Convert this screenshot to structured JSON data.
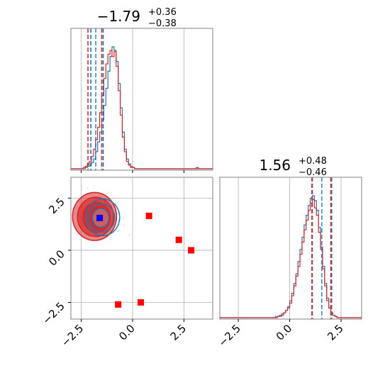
{
  "chart_data": {
    "type": "corner",
    "parameters": [
      {
        "title_main": "−1.79",
        "title_sup": "+0.36",
        "title_sub": "−0.38",
        "range": [
          -3.0,
          3.9
        ],
        "ticks": [
          -2.5,
          0.0,
          2.5
        ],
        "tick_labels": [
          "−2.5",
          "0.0",
          "2.5"
        ],
        "quantiles_blue": [
          -2.03,
          -1.79,
          -1.43
        ],
        "quantiles_red": [
          -2.17,
          -1.5
        ]
      },
      {
        "title_main": "1.56",
        "title_sup": "+0.48",
        "title_sub": "−0.46",
        "range": [
          -3.4,
          3.5
        ],
        "ticks": [
          -2.5,
          0.0,
          2.5
        ],
        "tick_labels": [
          "−2.5",
          "0.0",
          "2.5"
        ],
        "quantiles_blue": [
          1.1,
          1.56,
          2.04
        ],
        "quantiles_red": [
          1.08,
          2.0
        ]
      }
    ],
    "hist1": {
      "bin_start": -3.0,
      "bin_width": 0.1,
      "blue": [
        0,
        0,
        0,
        0,
        0,
        0,
        0,
        1,
        2,
        3,
        5,
        8,
        14,
        22,
        30,
        40,
        52,
        66,
        80,
        92,
        100,
        97,
        88,
        70,
        50,
        30,
        16,
        8,
        4,
        2,
        1,
        0,
        0,
        0,
        0,
        0,
        0,
        0,
        0,
        0,
        0,
        0,
        0,
        0,
        0,
        0,
        0,
        0,
        0,
        0,
        0,
        0,
        0,
        0,
        0,
        0,
        0,
        0,
        0,
        0,
        0,
        0,
        0,
        0,
        0,
        0,
        0,
        0,
        0
      ],
      "red": [
        0,
        0,
        0,
        0,
        0,
        0,
        1,
        2,
        4,
        6,
        10,
        16,
        24,
        34,
        46,
        60,
        74,
        86,
        94,
        97,
        92,
        96,
        84,
        64,
        44,
        26,
        14,
        6,
        3,
        1,
        1,
        0,
        0,
        0,
        0,
        0,
        0,
        0,
        0,
        0,
        0,
        0,
        0,
        0,
        0,
        0,
        0,
        0,
        0,
        0,
        0,
        0,
        0,
        0,
        0,
        0,
        0,
        0,
        0,
        0,
        0,
        1,
        0,
        0,
        0,
        0,
        0,
        0,
        0
      ]
    },
    "hist2": {
      "bin_start": -3.4,
      "bin_width": 0.1,
      "blue": [
        0,
        0,
        0,
        0,
        0,
        0,
        0,
        0,
        0,
        0,
        0,
        0,
        0,
        0,
        0,
        0,
        0,
        0,
        0,
        0,
        0,
        0,
        0,
        0,
        0,
        0,
        0,
        1,
        1,
        2,
        3,
        4,
        6,
        9,
        14,
        20,
        28,
        36,
        46,
        56,
        66,
        76,
        84,
        92,
        98,
        100,
        96,
        88,
        74,
        58,
        42,
        28,
        16,
        8,
        4,
        2,
        1,
        0,
        0,
        0,
        0,
        0,
        0,
        0,
        0,
        0,
        0,
        0,
        0
      ],
      "red": [
        0,
        0,
        0,
        0,
        0,
        0,
        0,
        0,
        0,
        0,
        0,
        0,
        0,
        0,
        0,
        0,
        0,
        0,
        0,
        0,
        0,
        0,
        0,
        0,
        0,
        0,
        0,
        0,
        1,
        1,
        2,
        4,
        6,
        8,
        12,
        18,
        26,
        34,
        42,
        52,
        62,
        72,
        80,
        88,
        94,
        97,
        90,
        84,
        70,
        56,
        40,
        26,
        14,
        8,
        4,
        2,
        1,
        0,
        0,
        0,
        0,
        0,
        0,
        0,
        0,
        0,
        0,
        0,
        0
      ]
    },
    "contours": {
      "blue": [
        [
          -1.45,
          1.58,
          0.82,
          0.88
        ],
        [
          -1.5,
          1.55,
          0.62,
          0.68
        ],
        [
          -1.55,
          1.55,
          0.4,
          0.45
        ]
      ],
      "red": [
        [
          -1.85,
          1.62,
          1.07,
          1.15
        ],
        [
          -1.8,
          1.6,
          0.88,
          0.94
        ],
        [
          -1.75,
          1.58,
          0.66,
          0.72
        ],
        [
          -1.7,
          1.56,
          0.45,
          0.5
        ]
      ]
    },
    "blue_marker": [
      -1.6,
      1.55
    ],
    "red_markers": [
      [
        0.8,
        1.65
      ],
      [
        2.25,
        0.5
      ],
      [
        2.85,
        0.0
      ],
      [
        0.4,
        -2.5
      ],
      [
        -0.7,
        -2.6
      ]
    ]
  }
}
